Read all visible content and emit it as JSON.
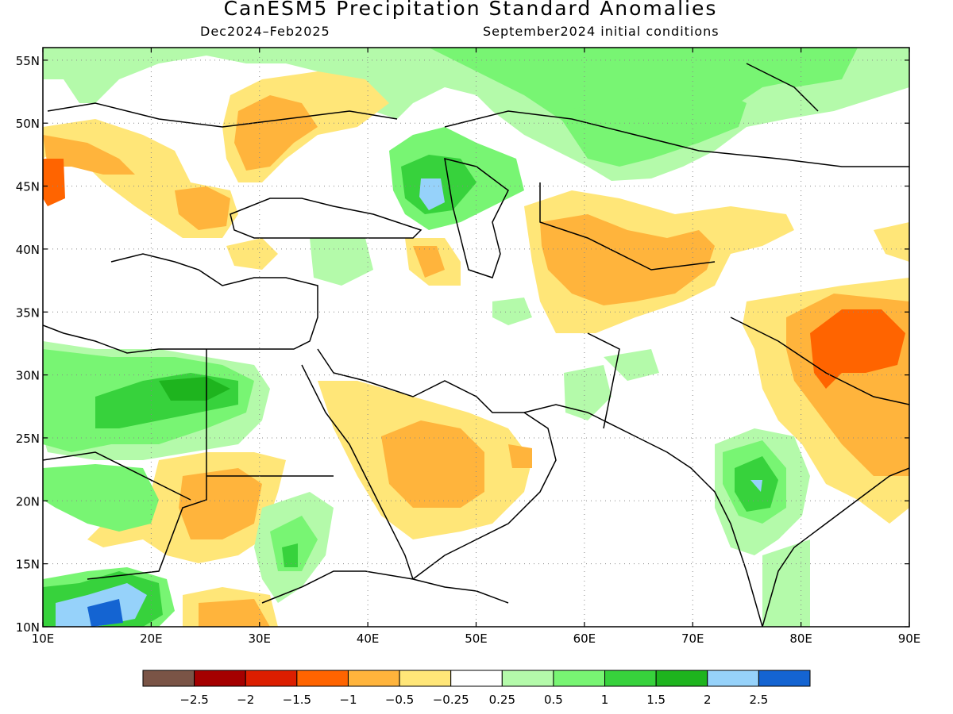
{
  "header": {
    "title": "CanESM5 Precipitation Standard Anomalies",
    "period": "Dec2024–Feb2025",
    "init": "September2024 initial conditions"
  },
  "map": {
    "lon_range": [
      10,
      90
    ],
    "lat_range": [
      10,
      56
    ],
    "lon_ticks": [
      {
        "value": 10,
        "label": "10E"
      },
      {
        "value": 20,
        "label": "20E"
      },
      {
        "value": 30,
        "label": "30E"
      },
      {
        "value": 40,
        "label": "40E"
      },
      {
        "value": 50,
        "label": "50E"
      },
      {
        "value": 60,
        "label": "60E"
      },
      {
        "value": 70,
        "label": "70E"
      },
      {
        "value": 80,
        "label": "80E"
      },
      {
        "value": 90,
        "label": "90E"
      }
    ],
    "lat_ticks": [
      {
        "value": 55,
        "label": "55N"
      },
      {
        "value": 50,
        "label": "50N"
      },
      {
        "value": 45,
        "label": "45N"
      },
      {
        "value": 40,
        "label": "40N"
      },
      {
        "value": 35,
        "label": "35N"
      },
      {
        "value": 30,
        "label": "30N"
      },
      {
        "value": 25,
        "label": "25N"
      },
      {
        "value": 20,
        "label": "20N"
      },
      {
        "value": 15,
        "label": "15N"
      },
      {
        "value": 10,
        "label": "10N"
      }
    ],
    "grid": true
  },
  "colorbar": {
    "colors": [
      "#7a5446",
      "#a50000",
      "#dc1e00",
      "#ff6400",
      "#ffb43c",
      "#ffe678",
      "#ffffff",
      "#b4faaa",
      "#78f573",
      "#37d23c",
      "#1eb41e",
      "#96d2fa",
      "#1464d2"
    ],
    "labels": [
      "−2.5",
      "−2",
      "−1.5",
      "−1",
      "−0.5",
      "−0.25",
      "0.25",
      "0.5",
      "1",
      "1.5",
      "2",
      "2.5"
    ]
  }
}
